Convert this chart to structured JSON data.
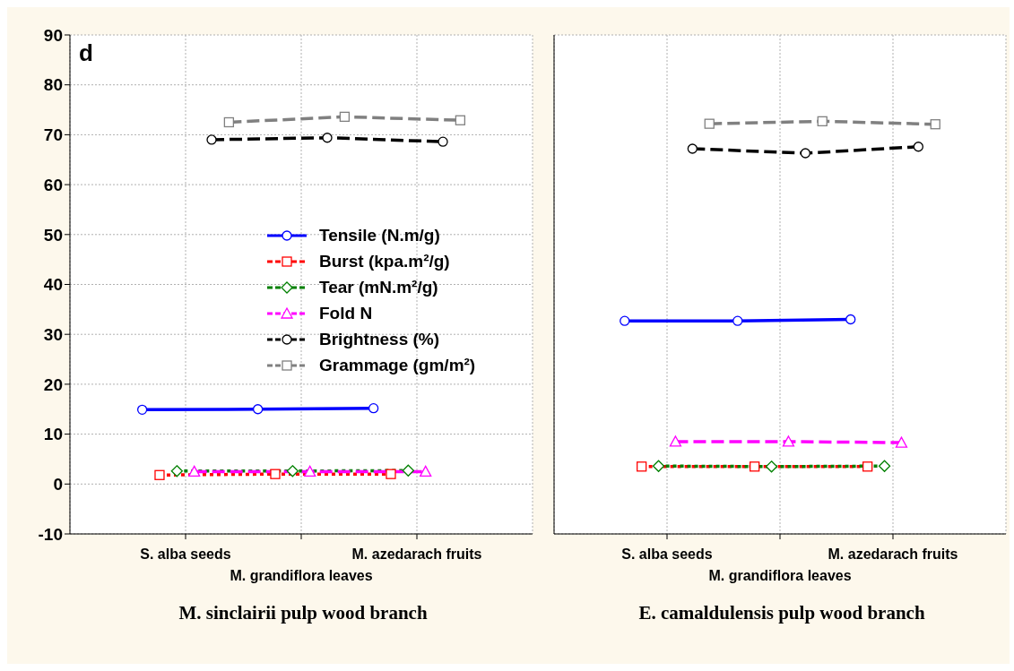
{
  "chart_data": [
    {
      "type": "line",
      "title": "d",
      "xlabel": "M. sinclairii pulp wood branch",
      "categories": [
        "S. alba seeds",
        "M. grandiflora leaves",
        "M. azedarach fruits"
      ],
      "ylim": [
        -10,
        90
      ],
      "yticks": [
        -10,
        0,
        10,
        20,
        30,
        40,
        50,
        60,
        70,
        80,
        90
      ],
      "grid": true,
      "legend": "center",
      "series": [
        {
          "name": "Tensile (N.m/g)",
          "color": "#0000ff",
          "marker": "circle",
          "line_style": "solid",
          "values": [
            14.9,
            15.0,
            15.2
          ]
        },
        {
          "name": "Burst (kpa.m²/g)",
          "color": "#ff0000",
          "marker": "square",
          "line_style": "dotted",
          "values": [
            1.8,
            2.0,
            2.0
          ]
        },
        {
          "name": "Tear (mN.m²/g)",
          "color": "#008000",
          "marker": "diamond",
          "line_style": "dotted",
          "values": [
            2.6,
            2.6,
            2.7
          ]
        },
        {
          "name": "Fold N",
          "color": "#ff00ff",
          "marker": "triangle",
          "line_style": "dashed",
          "values": [
            2.5,
            2.5,
            2.5
          ]
        },
        {
          "name": "Brightness (%)",
          "color": "#000000",
          "marker": "circle",
          "line_style": "dashed",
          "values": [
            69.0,
            69.4,
            68.6
          ]
        },
        {
          "name": "Grammage (gm/m²)",
          "color": "#808080",
          "marker": "square",
          "line_style": "dashed",
          "values": [
            72.5,
            73.6,
            72.9
          ]
        }
      ]
    },
    {
      "type": "line",
      "xlabel": "E. camaldulensis pulp wood branch",
      "categories": [
        "S. alba seeds",
        "M. grandiflora leaves",
        "M. azedarach fruits"
      ],
      "ylim": [
        -10,
        90
      ],
      "yticks": [
        -10,
        0,
        10,
        20,
        30,
        40,
        50,
        60,
        70,
        80,
        90
      ],
      "grid": true,
      "tick_labels": "x",
      "series": [
        {
          "color": "#0000ff",
          "marker": "circle",
          "line_style": "solid",
          "values": [
            32.7,
            32.7,
            33.0
          ]
        },
        {
          "color": "#ff0000",
          "marker": "square",
          "line_style": "dotted",
          "values": [
            3.5,
            3.5,
            3.5
          ]
        },
        {
          "color": "#008000",
          "marker": "diamond",
          "line_style": "dotted",
          "values": [
            3.6,
            3.5,
            3.6
          ]
        },
        {
          "color": "#ff00ff",
          "marker": "triangle",
          "line_style": "dashed",
          "values": [
            8.5,
            8.5,
            8.3
          ]
        },
        {
          "color": "#000000",
          "marker": "circle",
          "line_style": "dashed",
          "values": [
            67.2,
            66.3,
            67.6
          ]
        },
        {
          "color": "#808080",
          "marker": "square",
          "line_style": "dashed",
          "values": [
            72.2,
            72.7,
            72.1
          ]
        }
      ]
    }
  ]
}
